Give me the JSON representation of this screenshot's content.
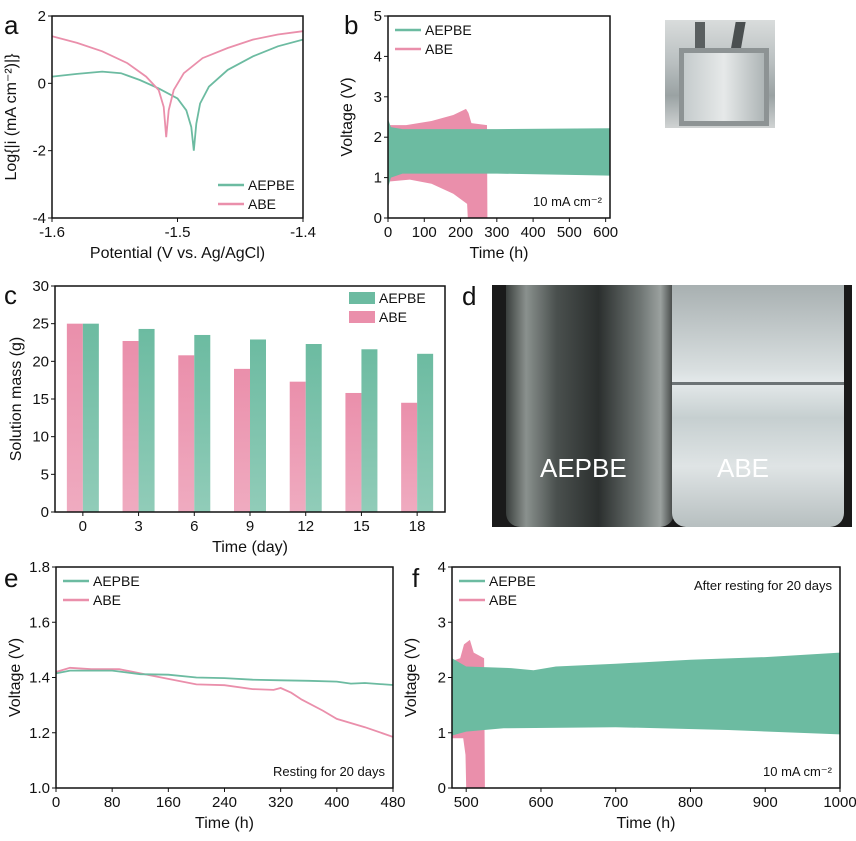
{
  "colors": {
    "AEPBE": "#6cbba1",
    "ABE": "#ea8fab"
  },
  "chart_data": [
    {
      "panel": "a",
      "type": "line",
      "xlabel": "Potential (V vs. Ag/AgCl)",
      "ylabel": "Log{|i (mA cm⁻²)|}",
      "xlim": [
        -1.6,
        -1.4
      ],
      "ylim": [
        -4,
        2
      ],
      "xticks": [
        "-1.6",
        "-1.5",
        "-1.4"
      ],
      "yticks": [
        "-4",
        "-2",
        "0",
        "2"
      ],
      "legend": [
        "AEPBE",
        "ABE"
      ],
      "legend_position": "bottom-right",
      "series": [
        {
          "name": "AEPBE",
          "points": [
            [
              -1.6,
              0.2
            ],
            [
              -1.58,
              0.28
            ],
            [
              -1.56,
              0.35
            ],
            [
              -1.545,
              0.3
            ],
            [
              -1.53,
              0.1
            ],
            [
              -1.515,
              -0.15
            ],
            [
              -1.5,
              -0.45
            ],
            [
              -1.493,
              -0.8
            ],
            [
              -1.489,
              -1.3
            ],
            [
              -1.487,
              -2.0
            ],
            [
              -1.485,
              -1.2
            ],
            [
              -1.482,
              -0.6
            ],
            [
              -1.475,
              -0.1
            ],
            [
              -1.46,
              0.4
            ],
            [
              -1.44,
              0.8
            ],
            [
              -1.42,
              1.1
            ],
            [
              -1.4,
              1.3
            ]
          ]
        },
        {
          "name": "ABE",
          "points": [
            [
              -1.6,
              1.4
            ],
            [
              -1.58,
              1.2
            ],
            [
              -1.56,
              0.95
            ],
            [
              -1.54,
              0.6
            ],
            [
              -1.525,
              0.2
            ],
            [
              -1.515,
              -0.2
            ],
            [
              -1.511,
              -0.7
            ],
            [
              -1.509,
              -1.6
            ],
            [
              -1.507,
              -0.8
            ],
            [
              -1.503,
              -0.2
            ],
            [
              -1.495,
              0.3
            ],
            [
              -1.48,
              0.75
            ],
            [
              -1.46,
              1.05
            ],
            [
              -1.44,
              1.3
            ],
            [
              -1.42,
              1.45
            ],
            [
              -1.4,
              1.55
            ]
          ]
        }
      ]
    },
    {
      "panel": "b",
      "type": "area",
      "xlabel": "Time (h)",
      "ylabel": "Voltage (V)",
      "xlim": [
        0,
        612
      ],
      "ylim": [
        0,
        5
      ],
      "xticks": [
        "0",
        "100",
        "200",
        "300",
        "400",
        "500",
        "600"
      ],
      "yticks": [
        "0",
        "1",
        "2",
        "3",
        "4",
        "5"
      ],
      "legend": [
        "AEPBE",
        "ABE"
      ],
      "legend_position": "top-left",
      "annotation": "10 mA cm⁻²",
      "series": [
        {
          "name": "ABE",
          "upper": [
            [
              0,
              2.3
            ],
            [
              50,
              2.3
            ],
            [
              120,
              2.4
            ],
            [
              180,
              2.55
            ],
            [
              215,
              2.7
            ],
            [
              222,
              2.6
            ],
            [
              230,
              2.35
            ],
            [
              273,
              2.3
            ],
            [
              274,
              0
            ]
          ],
          "lower": [
            [
              0,
              0.9
            ],
            [
              60,
              0.95
            ],
            [
              120,
              0.85
            ],
            [
              180,
              0.6
            ],
            [
              218,
              0.35
            ],
            [
              220,
              0
            ],
            [
              274,
              0
            ]
          ]
        },
        {
          "name": "AEPBE",
          "upper": [
            [
              0,
              2.45
            ],
            [
              8,
              2.25
            ],
            [
              40,
              2.2
            ],
            [
              300,
              2.2
            ],
            [
              612,
              2.22
            ]
          ],
          "lower": [
            [
              0,
              0.75
            ],
            [
              8,
              1.0
            ],
            [
              40,
              1.1
            ],
            [
              300,
              1.1
            ],
            [
              612,
              1.05
            ]
          ]
        }
      ]
    },
    {
      "panel": "c",
      "type": "bar",
      "xlabel": "Time (day)",
      "ylabel": "Solution mass (g)",
      "ylim": [
        0,
        30
      ],
      "yticks": [
        "0",
        "5",
        "10",
        "15",
        "20",
        "25",
        "30"
      ],
      "categories": [
        "0",
        "3",
        "6",
        "9",
        "12",
        "15",
        "18"
      ],
      "legend": [
        "AEPBE",
        "ABE"
      ],
      "legend_position": "top-right",
      "series": [
        {
          "name": "ABE",
          "values": [
            25.0,
            22.7,
            20.8,
            19.0,
            17.3,
            15.8,
            14.5
          ]
        },
        {
          "name": "AEPBE",
          "values": [
            25.0,
            24.3,
            23.5,
            22.9,
            22.3,
            21.6,
            21.0
          ]
        }
      ]
    },
    {
      "panel": "e",
      "type": "line",
      "xlabel": "Time (h)",
      "ylabel": "Voltage (V)",
      "xlim": [
        0,
        480
      ],
      "ylim": [
        1.0,
        1.8
      ],
      "xticks": [
        "0",
        "80",
        "160",
        "240",
        "320",
        "400",
        "480"
      ],
      "yticks": [
        "1.0",
        "1.2",
        "1.4",
        "1.6",
        "1.8"
      ],
      "legend": [
        "AEPBE",
        "ABE"
      ],
      "legend_position": "top-left",
      "annotation": "Resting for 20 days",
      "series": [
        {
          "name": "ABE",
          "points": [
            [
              0,
              1.42
            ],
            [
              20,
              1.435
            ],
            [
              50,
              1.43
            ],
            [
              90,
              1.43
            ],
            [
              130,
              1.41
            ],
            [
              160,
              1.395
            ],
            [
              200,
              1.375
            ],
            [
              240,
              1.372
            ],
            [
              280,
              1.358
            ],
            [
              310,
              1.355
            ],
            [
              320,
              1.362
            ],
            [
              335,
              1.345
            ],
            [
              350,
              1.32
            ],
            [
              380,
              1.28
            ],
            [
              400,
              1.25
            ],
            [
              440,
              1.22
            ],
            [
              480,
              1.185
            ]
          ]
        },
        {
          "name": "AEPBE",
          "points": [
            [
              0,
              1.415
            ],
            [
              20,
              1.425
            ],
            [
              80,
              1.425
            ],
            [
              120,
              1.412
            ],
            [
              160,
              1.41
            ],
            [
              200,
              1.4
            ],
            [
              240,
              1.398
            ],
            [
              280,
              1.392
            ],
            [
              320,
              1.39
            ],
            [
              360,
              1.388
            ],
            [
              400,
              1.385
            ],
            [
              420,
              1.378
            ],
            [
              440,
              1.38
            ],
            [
              480,
              1.373
            ]
          ]
        }
      ]
    },
    {
      "panel": "f",
      "type": "area",
      "xlabel": "Time (h)",
      "ylabel": "Voltage (V)",
      "xlim": [
        481,
        1000
      ],
      "ylim": [
        0,
        4
      ],
      "xticks": [
        "500",
        "600",
        "700",
        "800",
        "900",
        "1000"
      ],
      "yticks": [
        "0",
        "1",
        "2",
        "3",
        "4"
      ],
      "legend": [
        "AEPBE",
        "ABE"
      ],
      "legend_position": "top-left",
      "annotation": "10 mA cm⁻²",
      "annotation_top": "After resting for 20 days",
      "series": [
        {
          "name": "ABE",
          "upper": [
            [
              481,
              2.3
            ],
            [
              492,
              2.35
            ],
            [
              497,
              2.6
            ],
            [
              505,
              2.68
            ],
            [
              510,
              2.45
            ],
            [
              524,
              2.35
            ],
            [
              525,
              0
            ]
          ],
          "lower": [
            [
              481,
              0.9
            ],
            [
              496,
              0.9
            ],
            [
              499,
              0.6
            ],
            [
              500,
              0
            ],
            [
              525,
              0
            ]
          ]
        },
        {
          "name": "AEPBE",
          "upper": [
            [
              481,
              2.35
            ],
            [
              500,
              2.2
            ],
            [
              560,
              2.17
            ],
            [
              590,
              2.13
            ],
            [
              620,
              2.2
            ],
            [
              700,
              2.25
            ],
            [
              800,
              2.32
            ],
            [
              900,
              2.37
            ],
            [
              1000,
              2.45
            ]
          ],
          "lower": [
            [
              481,
              0.95
            ],
            [
              500,
              1.02
            ],
            [
              550,
              1.08
            ],
            [
              700,
              1.1
            ],
            [
              850,
              1.05
            ],
            [
              1000,
              0.97
            ]
          ]
        }
      ]
    }
  ],
  "photos": {
    "b_inset": {
      "panel": "b"
    },
    "d": {
      "panel": "d",
      "labels": [
        "AEPBE",
        "ABE"
      ]
    }
  }
}
